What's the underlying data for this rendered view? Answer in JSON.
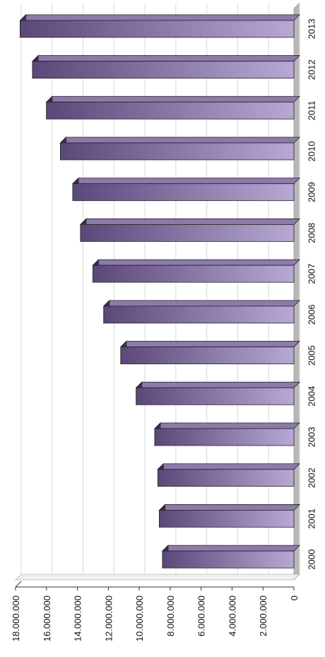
{
  "chart_data": {
    "type": "bar",
    "orientation": "horizontal, rotated 90° (page rotated)",
    "style": "3d",
    "categories": [
      "2000",
      "2001",
      "2002",
      "2003",
      "2004",
      "2005",
      "2006",
      "2007",
      "2008",
      "2009",
      "2010",
      "2011",
      "2012",
      "2013"
    ],
    "values": [
      8500000,
      8700000,
      8800000,
      9000000,
      10200000,
      11200000,
      12300000,
      13000000,
      13800000,
      14300000,
      15100000,
      16000000,
      16900000,
      17700000
    ],
    "axis": {
      "min": 0,
      "max": 18000000,
      "ticks": [
        0,
        2000000,
        4000000,
        6000000,
        8000000,
        10000000,
        12000000,
        14000000,
        16000000,
        18000000
      ],
      "tick_labels": [
        "0",
        "2.000.000",
        "4.000.000",
        "6.000.000",
        "8.000.000",
        "10.000.000",
        "12.000.000",
        "14.000.000",
        "16.000.000",
        "18.000.000"
      ]
    },
    "title": "",
    "xlabel": "",
    "ylabel": "",
    "grid": true,
    "legend": "none",
    "colors": {
      "bar_dark": "#5a4878",
      "bar_light": "#b7a8d4",
      "bar_top": "#8d7aab",
      "bar_side": "#3b2d55",
      "wall": "#b8b8b8",
      "grid": "#d8d8d8",
      "axis": "#333333"
    }
  }
}
